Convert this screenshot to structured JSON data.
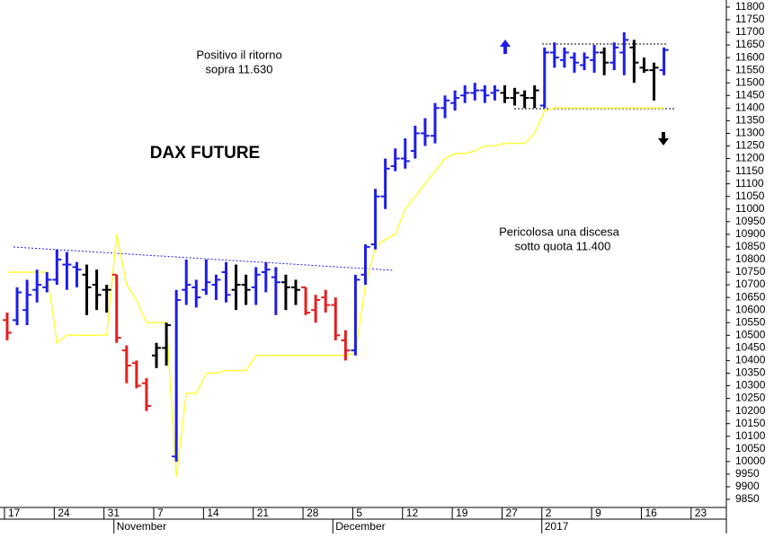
{
  "title": "DAX FUTURE",
  "annotations": [
    [
      "Positivo il ritorno",
      "sopra 11.630"
    ],
    [
      "Pericolosa una discesa",
      "sotto quota 11.400"
    ]
  ],
  "chart_data": {
    "type": "ohlc",
    "ylim": [
      9818,
      11828
    ],
    "yticks": [
      9850,
      9900,
      9950,
      10000,
      10050,
      10100,
      10150,
      10200,
      10250,
      10300,
      10350,
      10400,
      10450,
      10500,
      10550,
      10600,
      10650,
      10700,
      10750,
      10800,
      10850,
      10900,
      10950,
      11000,
      11050,
      11100,
      11150,
      11200,
      11250,
      11300,
      11350,
      11400,
      11450,
      11500,
      11550,
      11600,
      11650,
      11700,
      11750,
      11800
    ],
    "xlim": [
      -0.72,
      72.27
    ],
    "xticks": [
      {
        "value": 0,
        "label": "17"
      },
      {
        "value": 5,
        "label": "24"
      },
      {
        "value": 10,
        "label": "31"
      },
      {
        "value": 15,
        "label": "7"
      },
      {
        "value": 20,
        "label": "14"
      },
      {
        "value": 25,
        "label": "21"
      },
      {
        "value": 30,
        "label": "28"
      },
      {
        "value": 35,
        "label": "5"
      },
      {
        "value": 40,
        "label": "12"
      },
      {
        "value": 45,
        "label": "19"
      },
      {
        "value": 50,
        "label": "27"
      },
      {
        "value": 54,
        "label": "2"
      },
      {
        "value": 59,
        "label": "9"
      },
      {
        "value": 64,
        "label": "16"
      },
      {
        "value": 69,
        "label": "23"
      }
    ],
    "month_ticks": [
      {
        "value": 11,
        "label": "November"
      },
      {
        "value": 33,
        "label": "December"
      },
      {
        "value": 54,
        "label": "2017"
      }
    ],
    "ohlc": [
      [
        10560,
        10590,
        10480,
        10510
      ],
      [
        10560,
        10690,
        10540,
        10670
      ],
      [
        10600,
        10720,
        10540,
        10660
      ],
      [
        10680,
        10760,
        10630,
        10700
      ],
      [
        10690,
        10750,
        10670,
        10720
      ],
      [
        10720,
        10840,
        10700,
        10800
      ],
      [
        10780,
        10830,
        10680,
        10780
      ],
      [
        10770,
        10790,
        10690,
        10760
      ],
      [
        10740,
        10780,
        10580,
        10690
      ],
      [
        10700,
        10760,
        10600,
        10660
      ],
      [
        10680,
        10700,
        10590,
        10680
      ],
      [
        10740,
        10740,
        10470,
        10490
      ],
      [
        10440,
        10460,
        10310,
        10380
      ],
      [
        10390,
        10400,
        10290,
        10300
      ],
      [
        10310,
        10330,
        10200,
        10220
      ],
      [
        10420,
        10470,
        10370,
        10450
      ],
      [
        10450,
        10550,
        10380,
        10540
      ],
      [
        10020,
        10680,
        10000,
        10640
      ],
      [
        10680,
        10800,
        10620,
        10700
      ],
      [
        10690,
        10720,
        10610,
        10650
      ],
      [
        10680,
        10800,
        10660,
        10710
      ],
      [
        10700,
        10740,
        10640,
        10720
      ],
      [
        10750,
        10790,
        10630,
        10660
      ],
      [
        10680,
        10780,
        10600,
        10700
      ],
      [
        10700,
        10740,
        10620,
        10680
      ],
      [
        10690,
        10770,
        10620,
        10740
      ],
      [
        10750,
        10790,
        10670,
        10760
      ],
      [
        10730,
        10770,
        10580,
        10710
      ],
      [
        10710,
        10740,
        10600,
        10690
      ],
      [
        10690,
        10720,
        10620,
        10680
      ],
      [
        10690,
        10690,
        10580,
        10590
      ],
      [
        10600,
        10660,
        10550,
        10640
      ],
      [
        10650,
        10680,
        10590,
        10620
      ],
      [
        10620,
        10650,
        10480,
        10500
      ],
      [
        10480,
        10520,
        10400,
        10440
      ],
      [
        10440,
        10740,
        10420,
        10720
      ],
      [
        10740,
        10860,
        10700,
        10850
      ],
      [
        10860,
        11080,
        10840,
        11050
      ],
      [
        11050,
        11200,
        11000,
        11160
      ],
      [
        11170,
        11240,
        11150,
        11200
      ],
      [
        11200,
        11280,
        11160,
        11190
      ],
      [
        11230,
        11330,
        11200,
        11300
      ],
      [
        11300,
        11360,
        11250,
        11290
      ],
      [
        11290,
        11420,
        11260,
        11400
      ],
      [
        11400,
        11450,
        11360,
        11430
      ],
      [
        11420,
        11470,
        11390,
        11440
      ],
      [
        11450,
        11490,
        11420,
        11460
      ],
      [
        11460,
        11500,
        11430,
        11470
      ],
      [
        11470,
        11490,
        11420,
        11450
      ],
      [
        11460,
        11490,
        11430,
        11470
      ],
      [
        11460,
        11490,
        11420,
        11440
      ],
      [
        11440,
        11480,
        11410,
        11460
      ],
      [
        11450,
        11470,
        11400,
        11440
      ],
      [
        11440,
        11490,
        11400,
        11470
      ],
      [
        11410,
        11640,
        11400,
        11620
      ],
      [
        11620,
        11660,
        11560,
        11600
      ],
      [
        11590,
        11640,
        11560,
        11620
      ],
      [
        11600,
        11620,
        11540,
        11580
      ],
      [
        11570,
        11620,
        11550,
        11600
      ],
      [
        11590,
        11650,
        11540,
        11620
      ],
      [
        11620,
        11640,
        11530,
        11580
      ],
      [
        11580,
        11660,
        11550,
        11640
      ],
      [
        11620,
        11700,
        11530,
        11670
      ],
      [
        11640,
        11670,
        11500,
        11580
      ],
      [
        11560,
        11600,
        11540,
        11550
      ],
      [
        11550,
        11580,
        11430,
        11560
      ],
      [
        11550,
        11640,
        11530,
        11630
      ]
    ],
    "bar_colors": [
      "#e61e1e",
      "#1e1ee6",
      "#1e1ee6",
      "#1e1ee6",
      "#1e1ee6",
      "#1e1ee6",
      "#1e1ee6",
      "#1e1ee6",
      "#000000",
      "#000000",
      "#000000",
      "#e61e1e",
      "#e61e1e",
      "#e61e1e",
      "#e61e1e",
      "#000000",
      "#000000",
      "#1e1ee6",
      "#1e1ee6",
      "#1e1ee6",
      "#1e1ee6",
      "#1e1ee6",
      "#1e1ee6",
      "#000000",
      "#000000",
      "#1e1ee6",
      "#1e1ee6",
      "#1e1ee6",
      "#000000",
      "#000000",
      "#e61e1e",
      "#e61e1e",
      "#e61e1e",
      "#e61e1e",
      "#e61e1e",
      "#1e1ee6",
      "#1e1ee6",
      "#1e1ee6",
      "#1e1ee6",
      "#1e1ee6",
      "#1e1ee6",
      "#1e1ee6",
      "#1e1ee6",
      "#1e1ee6",
      "#1e1ee6",
      "#1e1ee6",
      "#1e1ee6",
      "#1e1ee6",
      "#1e1ee6",
      "#1e1ee6",
      "#000000",
      "#000000",
      "#000000",
      "#000000",
      "#1e1ee6",
      "#1e1ee6",
      "#1e1ee6",
      "#1e1ee6",
      "#1e1ee6",
      "#1e1ee6",
      "#000000",
      "#1e1ee6",
      "#1e1ee6",
      "#000000",
      "#000000",
      "#000000",
      "#1e1ee6"
    ],
    "stop_line": {
      "color": "#ffff3c",
      "values": [
        10750,
        10750,
        10750,
        10750,
        10750,
        10470,
        10500,
        10500,
        10500,
        10500,
        10500,
        10900,
        10700,
        10640,
        10550,
        10550,
        10550,
        9940,
        10270,
        10270,
        10350,
        10350,
        10360,
        10360,
        10360,
        10420,
        10420,
        10420,
        10420,
        10420,
        10420,
        10420,
        10420,
        10420,
        10420,
        10430,
        10700,
        10850,
        10880,
        10900,
        11000,
        11050,
        11100,
        11150,
        11200,
        11220,
        11220,
        11230,
        11250,
        11250,
        11260,
        11260,
        11260,
        11300,
        11390,
        11400,
        11400,
        11400,
        11400,
        11400,
        11400,
        11400,
        11400,
        11400,
        11400,
        11400,
        11400
      ]
    }
  }
}
